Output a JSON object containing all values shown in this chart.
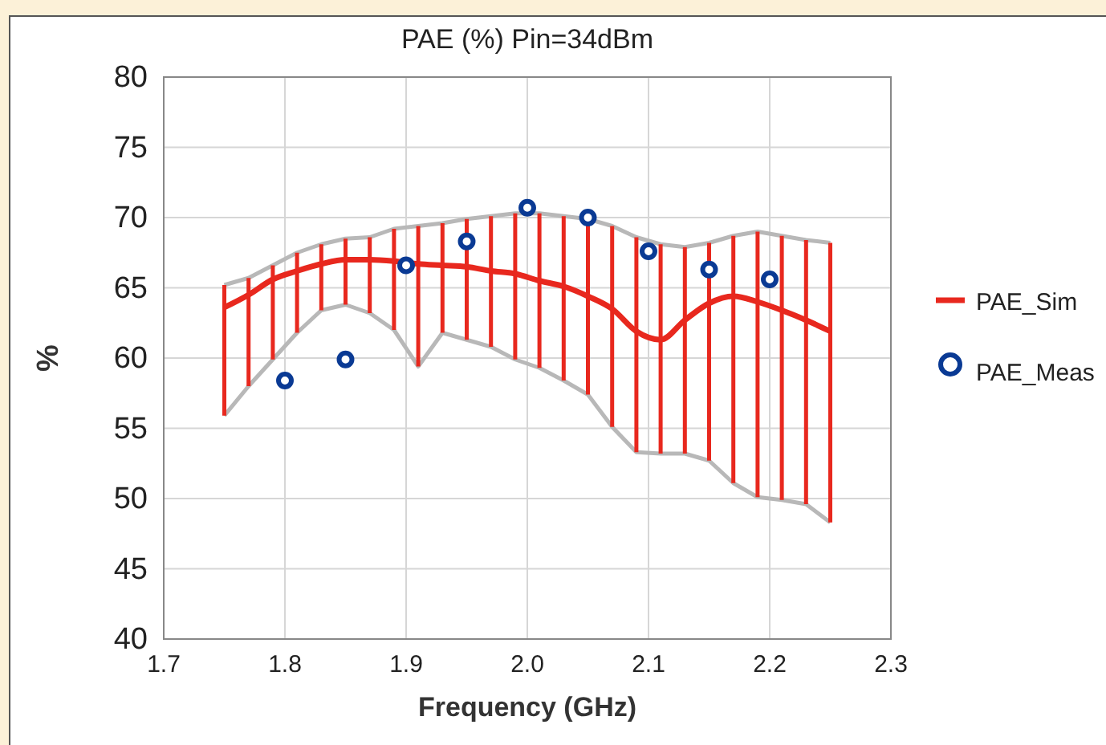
{
  "chart_data": {
    "type": "line",
    "title": "PAE (%) Pin=34dBm",
    "xlabel": "Frequency (GHz)",
    "ylabel": "%",
    "xlim": [
      1.7,
      2.3
    ],
    "xticks": [
      1.7,
      {
        "value": 1.8,
        "label": "1.8"
      },
      {
        "value": 1.9,
        "label": "1.9"
      },
      {
        "value": 2.0,
        "label": "2.0"
      },
      {
        "value": 2.1,
        "label": "2.1"
      },
      {
        "value": 2.2,
        "label": "2.2"
      },
      {
        "value": 2.3,
        "label": "2.3"
      }
    ],
    "ylim": [
      40,
      80
    ],
    "yticks": [
      40,
      45,
      50,
      55,
      60,
      65,
      70,
      75,
      80
    ],
    "grid": true,
    "legend": "right",
    "series": [
      {
        "color": "#b8b8b8",
        "x": [
          1.75,
          1.77,
          1.79,
          1.81,
          1.83,
          1.85,
          1.87,
          1.89,
          1.91,
          1.93,
          1.95,
          1.97,
          1.99,
          2.01,
          2.03,
          2.05,
          2.07,
          2.09,
          2.11,
          2.13,
          2.15,
          2.17,
          2.19,
          2.21,
          2.23,
          2.25
        ],
        "values": [
          55.9,
          58.0,
          59.9,
          61.8,
          63.4,
          63.8,
          63.2,
          62.0,
          59.4,
          61.8,
          61.3,
          60.8,
          59.9,
          59.3,
          58.4,
          57.4,
          55.1,
          53.3,
          53.2,
          53.2,
          52.7,
          51.1,
          50.1,
          49.9,
          49.6,
          48.3
        ]
      },
      {
        "color": "#b8b8b8",
        "x": [
          1.75,
          1.77,
          1.79,
          1.81,
          1.83,
          1.85,
          1.87,
          1.89,
          1.91,
          1.93,
          1.95,
          1.97,
          1.99,
          2.01,
          2.03,
          2.05,
          2.07,
          2.09,
          2.11,
          2.13,
          2.15,
          2.17,
          2.19,
          2.21,
          2.23,
          2.25
        ],
        "values": [
          65.2,
          65.7,
          66.6,
          67.5,
          68.1,
          68.5,
          68.6,
          69.2,
          69.4,
          69.6,
          69.9,
          70.1,
          70.3,
          70.3,
          70.1,
          69.9,
          69.4,
          68.6,
          68.1,
          67.9,
          68.2,
          68.7,
          69.0,
          68.7,
          68.4,
          68.2
        ]
      },
      {
        "name": "PAE_Sim",
        "color": "#e8281e",
        "x": [
          1.75,
          1.77,
          1.79,
          1.81,
          1.83,
          1.85,
          1.87,
          1.89,
          1.91,
          1.93,
          1.95,
          1.97,
          1.99,
          2.01,
          2.03,
          2.05,
          2.07,
          2.09,
          2.11,
          2.13,
          2.15,
          2.17,
          2.19,
          2.21,
          2.23,
          2.25
        ],
        "values": [
          63.6,
          64.5,
          65.6,
          66.2,
          66.7,
          67.0,
          67.0,
          66.9,
          66.7,
          66.6,
          66.5,
          66.2,
          66.0,
          65.5,
          65.1,
          64.4,
          63.5,
          61.9,
          61.3,
          62.7,
          63.9,
          64.4,
          64.0,
          63.4,
          62.7,
          61.9
        ],
        "errors": [
          [
            55.9,
            65.2
          ],
          [
            58.0,
            65.7
          ],
          [
            59.9,
            66.6
          ],
          [
            61.8,
            67.5
          ],
          [
            63.4,
            68.1
          ],
          [
            63.8,
            68.5
          ],
          [
            63.2,
            68.6
          ],
          [
            62.0,
            69.2
          ],
          [
            59.4,
            69.4
          ],
          [
            61.8,
            69.6
          ],
          [
            61.3,
            69.9
          ],
          [
            60.8,
            70.1
          ],
          [
            59.9,
            70.3
          ],
          [
            59.3,
            70.3
          ],
          [
            58.4,
            70.1
          ],
          [
            57.4,
            69.9
          ],
          [
            55.1,
            69.4
          ],
          [
            53.3,
            68.6
          ],
          [
            53.2,
            68.1
          ],
          [
            53.2,
            67.9
          ],
          [
            52.7,
            68.2
          ],
          [
            51.1,
            68.7
          ],
          [
            50.1,
            69.0
          ],
          [
            49.9,
            68.7
          ],
          [
            49.6,
            68.4
          ],
          [
            48.3,
            68.2
          ]
        ]
      },
      {
        "name": "PAE_Meas",
        "type": "scatter",
        "color": "#0a3a94",
        "marker": "circle",
        "x": [
          1.8,
          1.85,
          1.9,
          1.95,
          2.0,
          2.05,
          2.1,
          2.15,
          2.2
        ],
        "values": [
          58.4,
          59.9,
          66.6,
          68.3,
          70.7,
          70.0,
          67.6,
          66.3,
          65.6
        ]
      }
    ]
  }
}
